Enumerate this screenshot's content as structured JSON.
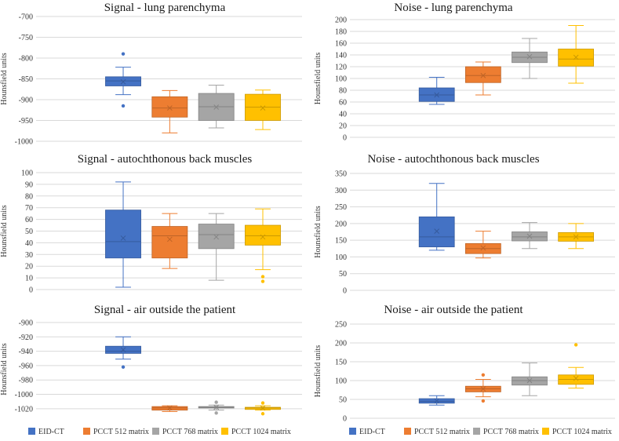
{
  "figure": "Box plots of signal and noise (Hounsfield units) for EID-CT and PCCT reconstructions",
  "legend": [
    {
      "label": "EID-CT",
      "color": "#4472c4"
    },
    {
      "label": "PCCT 512 matrix",
      "color": "#ed7d31"
    },
    {
      "label": "PCCT 768 matrix",
      "color": "#a5a5a5"
    },
    {
      "label": "PCCT 1024 matrix",
      "color": "#ffc000"
    }
  ],
  "chart_data": [
    {
      "type": "box",
      "title": "Signal - lung parenchyma",
      "ylabel": "Hounsfield units",
      "ylim": [
        -1000,
        -700
      ],
      "yticks": [
        -1000,
        -950,
        -900,
        -850,
        -800,
        -750,
        -700
      ],
      "series": [
        {
          "name": "EID-CT",
          "min": -888,
          "q1": -867,
          "median": -855,
          "q3": -845,
          "max": -822,
          "mean": -857,
          "outliers": [
            -790,
            -915
          ]
        },
        {
          "name": "PCCT 512 matrix",
          "min": -980,
          "q1": -942,
          "median": -920,
          "q3": -893,
          "max": -878,
          "mean": -920,
          "outliers": []
        },
        {
          "name": "PCCT 768 matrix",
          "min": -968,
          "q1": -950,
          "median": -917,
          "q3": -885,
          "max": -865,
          "mean": -918,
          "outliers": []
        },
        {
          "name": "PCCT 1024 matrix",
          "min": -972,
          "q1": -950,
          "median": -918,
          "q3": -887,
          "max": -877,
          "mean": -920,
          "outliers": []
        }
      ]
    },
    {
      "type": "box",
      "title": "Noise - lung parenchyma",
      "ylabel": "Hounsfield units",
      "ylim": [
        0,
        200
      ],
      "yticks": [
        0,
        20,
        40,
        60,
        80,
        100,
        120,
        140,
        160,
        180,
        200
      ],
      "series": [
        {
          "name": "EID-CT",
          "min": 56,
          "q1": 61,
          "median": 72,
          "q3": 84,
          "max": 102,
          "mean": 72,
          "outliers": []
        },
        {
          "name": "PCCT 512 matrix",
          "min": 72,
          "q1": 93,
          "median": 105,
          "q3": 120,
          "max": 128,
          "mean": 105,
          "outliers": []
        },
        {
          "name": "PCCT 768 matrix",
          "min": 100,
          "q1": 127,
          "median": 136,
          "q3": 145,
          "max": 168,
          "mean": 137,
          "outliers": []
        },
        {
          "name": "PCCT 1024 matrix",
          "min": 92,
          "q1": 121,
          "median": 133,
          "q3": 150,
          "max": 190,
          "mean": 136,
          "outliers": []
        }
      ]
    },
    {
      "type": "box",
      "title": "Signal - autochthonous back muscles",
      "ylabel": "Hounsfield units",
      "ylim": [
        0,
        100
      ],
      "yticks": [
        0,
        10,
        20,
        30,
        40,
        50,
        60,
        70,
        80,
        90,
        100
      ],
      "series": [
        {
          "name": "EID-CT",
          "min": 2,
          "q1": 27,
          "median": 41,
          "q3": 68,
          "max": 92,
          "mean": 44,
          "outliers": []
        },
        {
          "name": "PCCT 512 matrix",
          "min": 18,
          "q1": 27,
          "median": 46,
          "q3": 54,
          "max": 65,
          "mean": 43,
          "outliers": []
        },
        {
          "name": "PCCT 768 matrix",
          "min": 8,
          "q1": 35,
          "median": 47,
          "q3": 56,
          "max": 65,
          "mean": 45,
          "outliers": []
        },
        {
          "name": "PCCT 1024 matrix",
          "min": 17,
          "q1": 38,
          "median": 46,
          "q3": 55,
          "max": 69,
          "mean": 45,
          "outliers": [
            11,
            7
          ]
        }
      ]
    },
    {
      "type": "box",
      "title": "Noise - autochthonous back muscles",
      "ylabel": "Hounsfield units",
      "ylim": [
        0,
        350
      ],
      "yticks": [
        0,
        50,
        100,
        150,
        200,
        250,
        300,
        350
      ],
      "series": [
        {
          "name": "EID-CT",
          "min": 120,
          "q1": 130,
          "median": 160,
          "q3": 220,
          "max": 320,
          "mean": 177,
          "outliers": []
        },
        {
          "name": "PCCT 512 matrix",
          "min": 97,
          "q1": 110,
          "median": 125,
          "q3": 140,
          "max": 177,
          "mean": 127,
          "outliers": []
        },
        {
          "name": "PCCT 768 matrix",
          "min": 125,
          "q1": 148,
          "median": 160,
          "q3": 175,
          "max": 203,
          "mean": 162,
          "outliers": []
        },
        {
          "name": "PCCT 1024 matrix",
          "min": 125,
          "q1": 147,
          "median": 160,
          "q3": 173,
          "max": 200,
          "mean": 160,
          "outliers": []
        }
      ]
    },
    {
      "type": "box",
      "title": "Signal - air outside the patient",
      "ylabel": "Hounsfield units",
      "ylim": [
        -1030,
        -900
      ],
      "yticks": [
        -1020,
        -1000,
        -980,
        -960,
        -940,
        -920,
        -900
      ],
      "series": [
        {
          "name": "EID-CT",
          "min": -951,
          "q1": -943,
          "median": -940,
          "q3": -933,
          "max": -920,
          "mean": -938,
          "outliers": [
            -962
          ]
        },
        {
          "name": "PCCT 512 matrix",
          "min": -1024,
          "q1": -1022,
          "median": -1019,
          "q3": -1017,
          "max": -1016,
          "mean": -1019,
          "outliers": []
        },
        {
          "name": "PCCT 768 matrix",
          "min": -1022,
          "q1": -1019,
          "median": -1018,
          "q3": -1017,
          "max": -1015,
          "mean": -1018,
          "outliers": [
            -1011,
            -1026
          ]
        },
        {
          "name": "PCCT 1024 matrix",
          "min": -1022,
          "q1": -1021,
          "median": -1019,
          "q3": -1018,
          "max": -1016,
          "mean": -1019,
          "outliers": [
            -1012,
            -1027
          ]
        }
      ]
    },
    {
      "type": "box",
      "title": "Noise - air outside the patient",
      "ylabel": "Hounsfield units",
      "ylim": [
        0,
        250
      ],
      "yticks": [
        0,
        50,
        100,
        150,
        200,
        250
      ],
      "series": [
        {
          "name": "EID-CT",
          "min": 35,
          "q1": 40,
          "median": 45,
          "q3": 52,
          "max": 60,
          "mean": 46,
          "outliers": []
        },
        {
          "name": "PCCT 512 matrix",
          "min": 57,
          "q1": 70,
          "median": 78,
          "q3": 85,
          "max": 103,
          "mean": 78,
          "outliers": [
            115,
            46
          ]
        },
        {
          "name": "PCCT 768 matrix",
          "min": 60,
          "q1": 88,
          "median": 100,
          "q3": 110,
          "max": 147,
          "mean": 100,
          "outliers": []
        },
        {
          "name": "PCCT 1024 matrix",
          "min": 80,
          "q1": 90,
          "median": 103,
          "q3": 115,
          "max": 135,
          "mean": 106,
          "outliers": [
            195
          ]
        }
      ]
    }
  ]
}
